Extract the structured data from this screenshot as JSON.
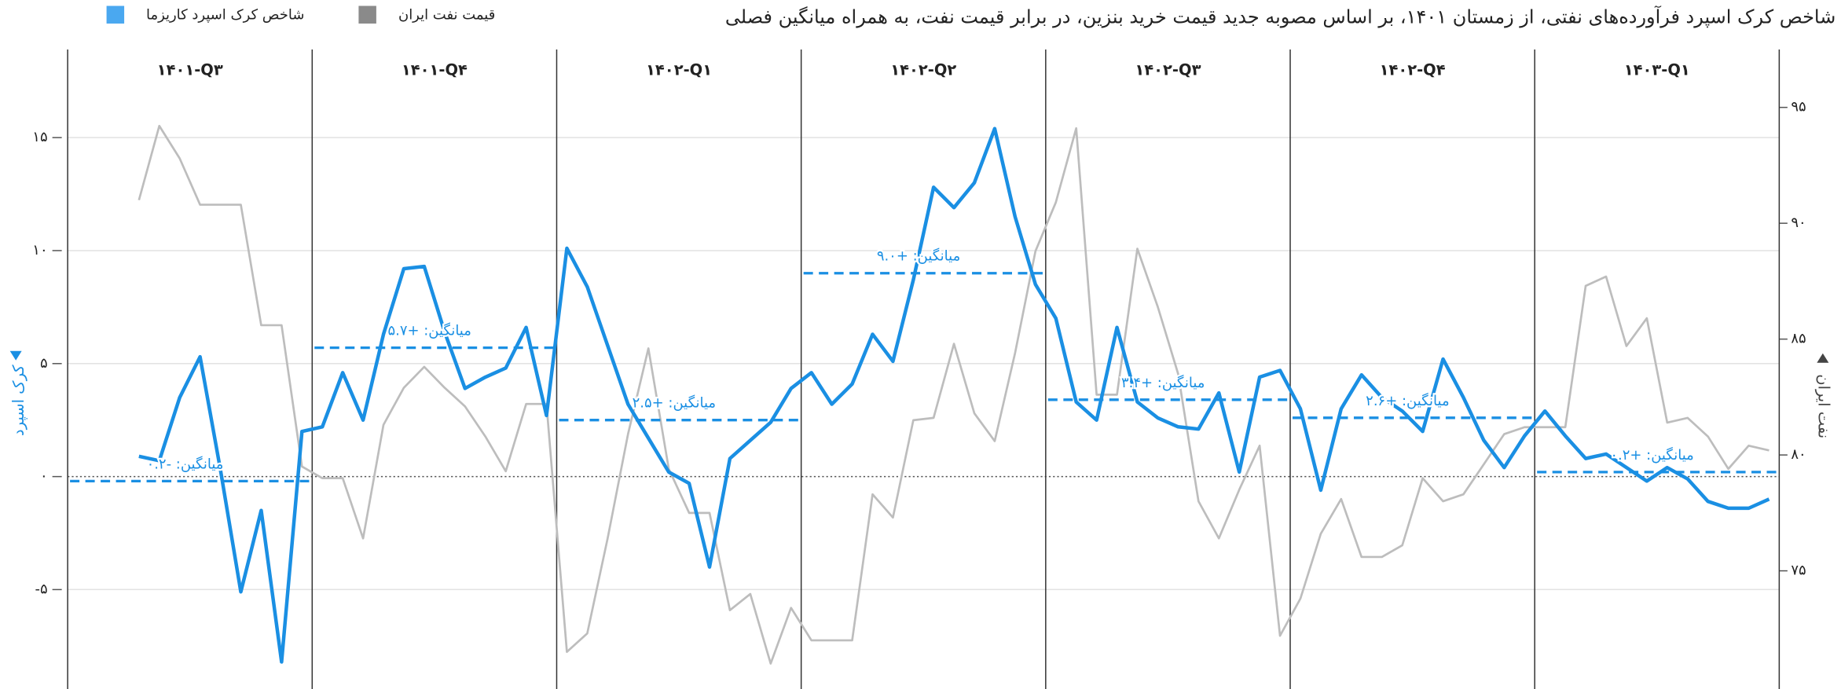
{
  "chart_data": {
    "type": "line",
    "title": "شاخص کرک اسپرد فرآورده‌های نفتی، از زمستان ۱۴۰۱، بر اساس مصوبه جدید قیمت خرید بنزین، در برابر قیمت نفت، به همراه میانگین فصلی",
    "ylabel": "کرک اسپرد",
    "y2label": "نفت ایران",
    "categories": [
      "۱۴۰۱-Q۳",
      "۱۴۰۱-Q۴",
      "۱۴۰۲-Q۱",
      "۱۴۰۲-Q۲",
      "۱۴۰۲-Q۳",
      "۱۴۰۲-Q۴",
      "۱۴۰۳-Q۱"
    ],
    "series": [
      {
        "name": "شاخص کرک اسپرد کاریزما",
        "color": "#1a8fe3",
        "axis": "y",
        "values": [
          [
            0.9,
            0.7,
            3.5,
            5.3,
            0.3,
            -5.1,
            -1.5,
            -8.2,
            2.0
          ],
          [
            2.2,
            4.6,
            2.5,
            6.3,
            9.2,
            9.3,
            6.4,
            3.9,
            4.4,
            4.8,
            6.6,
            2.7
          ],
          [
            10.1,
            8.4,
            5.8,
            3.2,
            1.7,
            0.2,
            -0.3,
            -4.0,
            0.8,
            1.6,
            2.4,
            3.9
          ],
          [
            4.6,
            3.2,
            4.1,
            6.3,
            5.1,
            8.7,
            12.8,
            11.9,
            13.0,
            15.4,
            11.5,
            8.5
          ],
          [
            7.0,
            3.3,
            2.5,
            6.6,
            3.3,
            2.6,
            2.2,
            2.1,
            3.7,
            0.2,
            4.4,
            4.7
          ],
          [
            3.0,
            -0.6,
            3.0,
            4.5,
            3.5,
            2.9,
            2.0,
            5.2,
            3.5,
            1.6,
            0.4,
            1.8
          ],
          [
            2.9,
            1.8,
            0.8,
            1.0,
            0.4,
            -0.2,
            0.4,
            -0.1,
            -1.1,
            -1.4,
            -1.4,
            -1.0
          ]
        ]
      },
      {
        "name": "قیمت نفت ایران",
        "color": "#bdbdbd",
        "axis": "y2",
        "values": [
          [
            91.0,
            94.2,
            92.8,
            90.8,
            90.8,
            90.8,
            85.6,
            85.6,
            79.5
          ],
          [
            79.0,
            79.0,
            76.4,
            81.3,
            82.9,
            83.8,
            82.9,
            82.1,
            80.8,
            79.3,
            82.2,
            82.2
          ],
          [
            71.5,
            72.3,
            76.4,
            80.9,
            84.6,
            79.4,
            77.5,
            77.5,
            73.3,
            74.0,
            71.0,
            73.4
          ],
          [
            72.0,
            72.0,
            72.0,
            78.3,
            77.3,
            81.5,
            81.6,
            84.8,
            81.8,
            80.6,
            84.4,
            88.8
          ],
          [
            90.9,
            94.1,
            82.6,
            82.6,
            88.9,
            86.4,
            83.5,
            78.0,
            76.4,
            78.5,
            80.4,
            72.2
          ],
          [
            73.8,
            76.6,
            78.1,
            75.6,
            75.6,
            76.1,
            79.0,
            78.0,
            78.3,
            79.6,
            80.9,
            81.2
          ],
          [
            81.2,
            81.2,
            87.3,
            87.7,
            84.7,
            85.9,
            81.4,
            81.6,
            80.8,
            79.4,
            80.4,
            80.2
          ]
        ]
      }
    ],
    "means": [
      -0.2,
      5.7,
      2.5,
      9.0,
      3.4,
      2.6,
      0.2
    ],
    "mean_labels": [
      "میانگین: -۰.۲",
      "میانگین: +۵.۷",
      "میانگین: +۲.۵",
      "میانگین: +۹.۰",
      "میانگین: +۳.۴",
      "میانگین: +۲.۶",
      "میانگین: +۰.۲"
    ],
    "ylim": [
      -9.4,
      18.9
    ],
    "yticks": [
      {
        "value": -5,
        "label": "-۵"
      },
      {
        "value": 0,
        "label": "۰"
      },
      {
        "value": 5,
        "label": "۵"
      },
      {
        "value": 10,
        "label": "۱۰"
      },
      {
        "value": 15,
        "label": "۱۵"
      }
    ],
    "y2lim": [
      69.9,
      97.5
    ],
    "y2ticks": [
      {
        "value": 75,
        "label": "۷۵"
      },
      {
        "value": 80,
        "label": "۸۰"
      },
      {
        "value": 85,
        "label": "۸۵"
      },
      {
        "value": 90,
        "label": "۹۰"
      },
      {
        "value": 95,
        "label": "۹۵"
      }
    ],
    "grid": true
  }
}
